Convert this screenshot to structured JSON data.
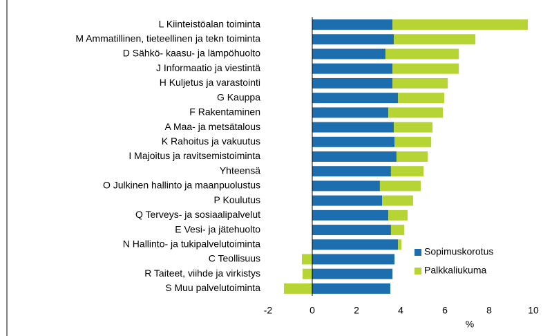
{
  "chart_data": {
    "type": "stacked_bar_horizontal",
    "categories": [
      "L Kiinteistöalan toiminta",
      "M Ammatillinen, tieteellinen ja tekn toiminta",
      "D Sähkö- kaasu- ja lämpöhuolto",
      "J Informaatio ja viestintä",
      "H Kuljetus ja varastointi",
      "G Kauppa",
      "F Rakentaminen",
      "A Maa- ja metsätalous",
      "K Rahoitus ja vakuutus",
      "I Majoitus ja ravitsemistoiminta",
      "Yhteensä",
      "O Julkinen hallinto ja maanpuolustus",
      "P Koulutus",
      "Q Terveys- ja sosiaalipalvelut",
      "E Vesi- ja jätehuolto",
      "N Hallinto- ja tukipalvelutoiminta",
      "C Teollisuus",
      "R Taiteet, viihde ja virkistys",
      "S Muu palvelutoiminta"
    ],
    "series": [
      {
        "name": "Sopimuskorotus",
        "color": "#1c6eae",
        "values": [
          3.63,
          3.69,
          3.31,
          3.63,
          3.63,
          3.88,
          3.44,
          3.69,
          3.72,
          3.81,
          3.56,
          3.06,
          3.16,
          3.44,
          3.56,
          3.88,
          3.72,
          3.63,
          3.53
        ]
      },
      {
        "name": "Palkkaliukuma",
        "color": "#b6d433",
        "values": [
          6.12,
          3.69,
          3.32,
          3.0,
          2.5,
          2.09,
          2.47,
          1.75,
          1.66,
          1.41,
          1.47,
          1.85,
          1.4,
          0.87,
          0.6,
          0.15,
          -0.47,
          -0.44,
          -1.28
        ]
      }
    ],
    "xlabel": "%",
    "xlim": [
      -2,
      10
    ],
    "xticks": [
      -2,
      0,
      2,
      4,
      6,
      8,
      10
    ],
    "legend": "lower right"
  }
}
